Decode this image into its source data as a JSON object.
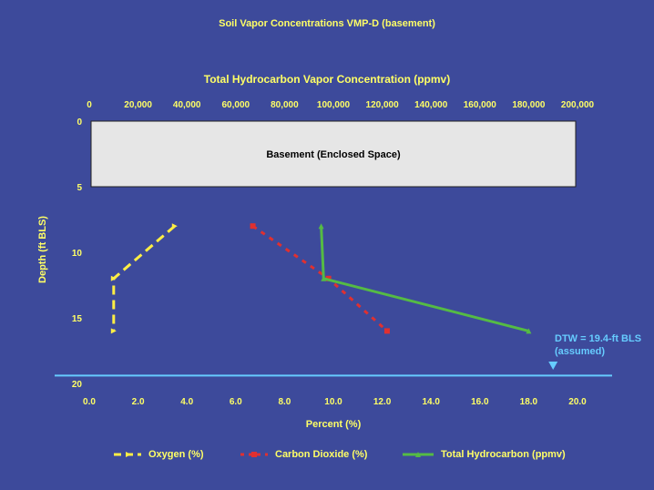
{
  "chart_data": {
    "type": "line",
    "title": "Soil Vapor Concentrations VMP-D (basement)",
    "top_axis": {
      "label": "Total Hydrocarbon Vapor Concentration (ppmv)",
      "range": [
        0,
        200000
      ],
      "ticks": [
        "0",
        "20,000",
        "40,000",
        "60,000",
        "80,000",
        "100,000",
        "120,000",
        "140,000",
        "160,000",
        "180,000",
        "200,000"
      ]
    },
    "bottom_axis": {
      "label": "Percent (%)",
      "range": [
        0,
        20
      ],
      "ticks": [
        "0.0",
        "2.0",
        "4.0",
        "6.0",
        "8.0",
        "10.0",
        "12.0",
        "14.0",
        "16.0",
        "18.0",
        "20.0"
      ]
    },
    "left_axis": {
      "label": "Depth (ft BLS)",
      "range": [
        0,
        20
      ],
      "inverted": true,
      "ticks": [
        "0",
        "5",
        "10",
        "15",
        "20"
      ]
    },
    "annotation_box": {
      "label": "Basement (Enclosed Space)",
      "depth_range": [
        0,
        5
      ]
    },
    "water_table": {
      "depth": 19.4,
      "label_line1": "DTW = 19.4-ft BLS",
      "label_line2": "(assumed)"
    },
    "series": [
      {
        "name": "Oxygen (%)",
        "axis": "bottom",
        "color": "#ffee44",
        "dash": "dashed",
        "points": [
          {
            "x": 3.5,
            "y": 8
          },
          {
            "x": 1.0,
            "y": 12
          },
          {
            "x": 1.0,
            "y": 16
          }
        ]
      },
      {
        "name": "Carbon Dioxide (%)",
        "axis": "bottom",
        "color": "#e03030",
        "dash": "dotted",
        "points": [
          {
            "x": 6.7,
            "y": 8
          },
          {
            "x": 9.8,
            "y": 12
          },
          {
            "x": 12.2,
            "y": 16
          }
        ]
      },
      {
        "name": "Total Hydrocarbon (ppmv)",
        "axis": "top",
        "color": "#55bb44",
        "dash": "solid",
        "points": [
          {
            "x": 95000,
            "y": 8
          },
          {
            "x": 96000,
            "y": 12
          },
          {
            "x": 180000,
            "y": 16
          }
        ]
      }
    ],
    "legend_placement": "bottom"
  },
  "legend": {
    "oxygen": "Oxygen (%)",
    "co2": "Carbon Dioxide (%)",
    "thc": "Total Hydrocarbon (ppmv)"
  }
}
